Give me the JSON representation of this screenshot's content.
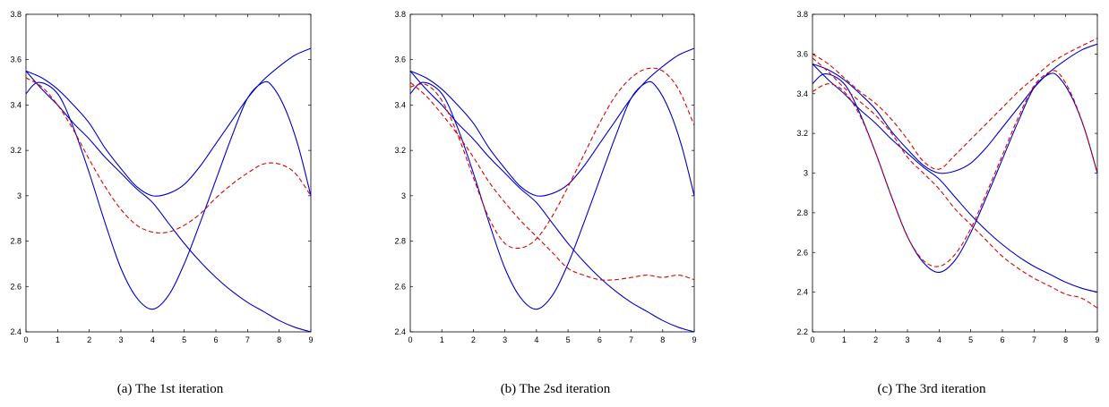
{
  "chart_data": [
    {
      "type": "line",
      "caption": "(a) The 1st iteration",
      "xlim": [
        0,
        9
      ],
      "ylim": [
        2.4,
        3.8
      ],
      "xticks": [
        0,
        1,
        2,
        3,
        4,
        5,
        6,
        7,
        8,
        9
      ],
      "yticks": [
        2.4,
        2.6,
        2.8,
        3,
        3.2,
        3.4,
        3.6,
        3.8
      ],
      "ytick_labels": [
        "2.4",
        "2.6",
        "2.8",
        "3",
        "3.2",
        "3.4",
        "3.6",
        "3.8"
      ],
      "series": [
        {
          "color": "#0000cc",
          "dash": false,
          "x": [
            0,
            0.5,
            1,
            1.5,
            2,
            2.5,
            3,
            3.5,
            4,
            4.5,
            5,
            5.5,
            6,
            6.5,
            7,
            7.5,
            8,
            8.5,
            9
          ],
          "y": [
            3.55,
            3.52,
            3.47,
            3.4,
            3.32,
            3.21,
            3.12,
            3.04,
            3.0,
            3.01,
            3.05,
            3.13,
            3.23,
            3.33,
            3.43,
            3.51,
            3.57,
            3.62,
            3.65
          ]
        },
        {
          "color": "#0000cc",
          "dash": false,
          "x": [
            0,
            0.4,
            1,
            1.5,
            2,
            2.5,
            3,
            3.5,
            4,
            4.5,
            5,
            5.5,
            6,
            6.5,
            7,
            7.5,
            7.8,
            8.2,
            8.6,
            9
          ],
          "y": [
            3.45,
            3.5,
            3.45,
            3.3,
            3.1,
            2.88,
            2.68,
            2.55,
            2.5,
            2.56,
            2.7,
            2.88,
            3.07,
            3.26,
            3.43,
            3.5,
            3.48,
            3.38,
            3.22,
            3.0
          ]
        },
        {
          "color": "#0000cc",
          "dash": false,
          "x": [
            0,
            0.5,
            1,
            1.5,
            2,
            2.5,
            3,
            3.5,
            4,
            4.5,
            5,
            5.5,
            6,
            6.5,
            7,
            7.5,
            8,
            8.5,
            9
          ],
          "y": [
            3.55,
            3.47,
            3.4,
            3.32,
            3.25,
            3.17,
            3.1,
            3.03,
            2.97,
            2.88,
            2.79,
            2.71,
            2.64,
            2.58,
            2.53,
            2.49,
            2.45,
            2.42,
            2.4
          ]
        },
        {
          "color": "#dd0000",
          "dash": true,
          "x": [
            0,
            0.5,
            1,
            1.5,
            2,
            2.5,
            3,
            3.5,
            4,
            4.5,
            5,
            5.5,
            6,
            6.5,
            7,
            7.5,
            8,
            8.5,
            9
          ],
          "y": [
            3.52,
            3.48,
            3.4,
            3.29,
            3.16,
            3.04,
            2.94,
            2.87,
            2.84,
            2.84,
            2.87,
            2.92,
            2.99,
            3.05,
            3.1,
            3.14,
            3.14,
            3.1,
            3.0
          ]
        }
      ]
    },
    {
      "type": "line",
      "caption": "(b) The 2sd iteration",
      "xlim": [
        0,
        9
      ],
      "ylim": [
        2.4,
        3.8
      ],
      "xticks": [
        0,
        1,
        2,
        3,
        4,
        5,
        6,
        7,
        8,
        9
      ],
      "yticks": [
        2.4,
        2.6,
        2.8,
        3,
        3.2,
        3.4,
        3.6,
        3.8
      ],
      "ytick_labels": [
        "2.4",
        "2.6",
        "2.8",
        "3",
        "3.2",
        "3.4",
        "3.6",
        "3.8"
      ],
      "series": [
        {
          "color": "#0000cc",
          "dash": false,
          "x": [
            0,
            0.5,
            1,
            1.5,
            2,
            2.5,
            3,
            3.5,
            4,
            4.5,
            5,
            5.5,
            6,
            6.5,
            7,
            7.5,
            8,
            8.5,
            9
          ],
          "y": [
            3.55,
            3.52,
            3.47,
            3.4,
            3.32,
            3.21,
            3.12,
            3.04,
            3.0,
            3.01,
            3.05,
            3.13,
            3.23,
            3.33,
            3.43,
            3.51,
            3.57,
            3.62,
            3.65
          ]
        },
        {
          "color": "#0000cc",
          "dash": false,
          "x": [
            0,
            0.4,
            1,
            1.5,
            2,
            2.5,
            3,
            3.5,
            4,
            4.5,
            5,
            5.5,
            6,
            6.5,
            7,
            7.5,
            7.8,
            8.2,
            8.6,
            9
          ],
          "y": [
            3.45,
            3.5,
            3.45,
            3.3,
            3.1,
            2.88,
            2.68,
            2.55,
            2.5,
            2.56,
            2.7,
            2.88,
            3.07,
            3.26,
            3.43,
            3.5,
            3.48,
            3.38,
            3.22,
            3.0
          ]
        },
        {
          "color": "#0000cc",
          "dash": false,
          "x": [
            0,
            0.5,
            1,
            1.5,
            2,
            2.5,
            3,
            3.5,
            4,
            4.5,
            5,
            5.5,
            6,
            6.5,
            7,
            7.5,
            8,
            8.5,
            9
          ],
          "y": [
            3.55,
            3.47,
            3.4,
            3.32,
            3.25,
            3.17,
            3.1,
            3.03,
            2.97,
            2.88,
            2.79,
            2.71,
            2.64,
            2.58,
            2.53,
            2.49,
            2.45,
            2.42,
            2.4
          ]
        },
        {
          "color": "#dd0000",
          "dash": true,
          "x": [
            0,
            0.5,
            1,
            1.5,
            2,
            2.5,
            3,
            3.5,
            4,
            4.5,
            5,
            5.5,
            6,
            6.5,
            7,
            7.5,
            8,
            8.5,
            9
          ],
          "y": [
            3.48,
            3.49,
            3.42,
            3.27,
            3.08,
            2.9,
            2.79,
            2.77,
            2.81,
            2.91,
            3.04,
            3.18,
            3.32,
            3.44,
            3.52,
            3.56,
            3.55,
            3.47,
            3.31
          ]
        },
        {
          "color": "#dd0000",
          "dash": true,
          "x": [
            0,
            0.5,
            1,
            1.5,
            2,
            2.5,
            3,
            3.5,
            4,
            4.5,
            5,
            5.5,
            6,
            6.5,
            7,
            7.5,
            8,
            8.5,
            9
          ],
          "y": [
            3.5,
            3.44,
            3.36,
            3.27,
            3.17,
            3.06,
            2.97,
            2.89,
            2.82,
            2.75,
            2.68,
            2.65,
            2.63,
            2.63,
            2.64,
            2.65,
            2.64,
            2.65,
            2.63
          ]
        }
      ]
    },
    {
      "type": "line",
      "caption": "(c) The 3rd iteration",
      "xlim": [
        0,
        9
      ],
      "ylim": [
        2.2,
        3.8
      ],
      "xticks": [
        0,
        1,
        2,
        3,
        4,
        5,
        6,
        7,
        8,
        9
      ],
      "yticks": [
        2.2,
        2.4,
        2.6,
        2.8,
        3,
        3.2,
        3.4,
        3.6,
        3.8
      ],
      "ytick_labels": [
        "2.2",
        "2.4",
        "2.6",
        "2.8",
        "3",
        "3.2",
        "3.4",
        "3.6",
        "3.8"
      ],
      "series": [
        {
          "color": "#0000cc",
          "dash": false,
          "x": [
            0,
            0.5,
            1,
            1.5,
            2,
            2.5,
            3,
            3.5,
            4,
            4.5,
            5,
            5.5,
            6,
            6.5,
            7,
            7.5,
            8,
            8.5,
            9
          ],
          "y": [
            3.55,
            3.52,
            3.47,
            3.4,
            3.32,
            3.21,
            3.12,
            3.04,
            3.0,
            3.01,
            3.05,
            3.13,
            3.23,
            3.33,
            3.43,
            3.51,
            3.57,
            3.62,
            3.65
          ]
        },
        {
          "color": "#0000cc",
          "dash": false,
          "x": [
            0,
            0.4,
            1,
            1.5,
            2,
            2.5,
            3,
            3.5,
            4,
            4.5,
            5,
            5.5,
            6,
            6.5,
            7,
            7.5,
            7.8,
            8.2,
            8.6,
            9
          ],
          "y": [
            3.45,
            3.5,
            3.45,
            3.3,
            3.1,
            2.88,
            2.68,
            2.55,
            2.5,
            2.56,
            2.7,
            2.88,
            3.07,
            3.26,
            3.43,
            3.5,
            3.48,
            3.38,
            3.22,
            3.0
          ]
        },
        {
          "color": "#0000cc",
          "dash": false,
          "x": [
            0,
            0.5,
            1,
            1.5,
            2,
            2.5,
            3,
            3.5,
            4,
            4.5,
            5,
            5.5,
            6,
            6.5,
            7,
            7.5,
            8,
            8.5,
            9
          ],
          "y": [
            3.55,
            3.47,
            3.4,
            3.32,
            3.25,
            3.17,
            3.1,
            3.03,
            2.97,
            2.88,
            2.79,
            2.71,
            2.64,
            2.58,
            2.53,
            2.49,
            2.45,
            2.42,
            2.4
          ]
        },
        {
          "color": "#dd0000",
          "dash": true,
          "x": [
            0,
            0.5,
            1,
            1.5,
            2,
            2.5,
            3,
            3.5,
            4,
            4.5,
            5,
            5.5,
            6,
            6.5,
            7,
            7.5,
            8,
            8.5,
            9
          ],
          "y": [
            3.6,
            3.55,
            3.48,
            3.41,
            3.35,
            3.27,
            3.17,
            3.06,
            3.02,
            3.09,
            3.17,
            3.25,
            3.33,
            3.41,
            3.48,
            3.55,
            3.6,
            3.64,
            3.68
          ]
        },
        {
          "color": "#dd0000",
          "dash": true,
          "x": [
            0,
            0.5,
            1,
            1.5,
            2,
            2.5,
            3,
            3.5,
            4,
            4.5,
            5,
            5.5,
            6,
            6.5,
            7,
            7.5,
            7.8,
            8.2,
            8.6,
            9
          ],
          "y": [
            3.41,
            3.45,
            3.41,
            3.29,
            3.1,
            2.88,
            2.68,
            2.56,
            2.53,
            2.59,
            2.72,
            2.9,
            3.09,
            3.28,
            3.44,
            3.51,
            3.5,
            3.39,
            3.22,
            3.0
          ]
        },
        {
          "color": "#dd0000",
          "dash": true,
          "x": [
            0,
            0.5,
            1,
            1.5,
            2,
            2.5,
            3,
            3.5,
            4,
            4.5,
            5,
            5.5,
            6,
            6.5,
            7,
            7.5,
            8,
            8.5,
            9
          ],
          "y": [
            3.58,
            3.51,
            3.43,
            3.36,
            3.29,
            3.2,
            3.08,
            3.0,
            2.92,
            2.82,
            2.74,
            2.66,
            2.58,
            2.52,
            2.47,
            2.43,
            2.39,
            2.37,
            2.32
          ]
        }
      ]
    }
  ]
}
